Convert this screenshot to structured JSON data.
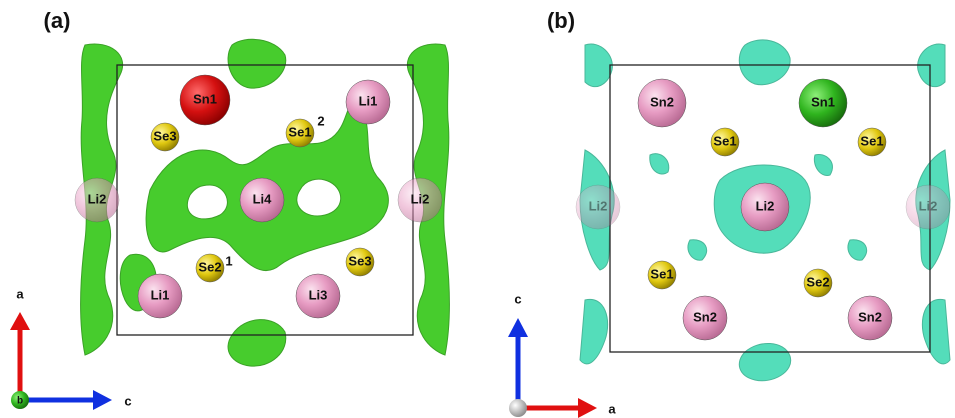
{
  "panels": [
    {
      "label": "(a)",
      "atoms": [
        "Sn1",
        "Li1",
        "Se3",
        "Se1",
        "2",
        "Li2",
        "Li4",
        "Li2",
        "Se2",
        "1",
        "Se3",
        "Li1",
        "Li3"
      ],
      "axes": {
        "vertical": "a",
        "horizontal": "c",
        "origin": "b"
      }
    },
    {
      "label": "(b)",
      "atoms": [
        "Sn2",
        "Sn1",
        "Se1",
        "Se1",
        "Li2",
        "Li2",
        "Li2",
        "Se1",
        "Se2",
        "Sn2",
        "Sn2"
      ],
      "axes": {
        "vertical": "c",
        "horizontal": "a"
      }
    }
  ]
}
